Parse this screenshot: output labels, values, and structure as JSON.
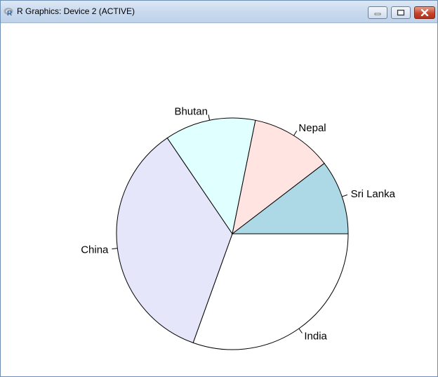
{
  "window": {
    "title": "R Graphics: Device 2 (ACTIVE)",
    "icon": "r-logo-icon",
    "controls": [
      "minimize-icon",
      "maximize-icon",
      "close-icon"
    ]
  },
  "chart_data": {
    "type": "pie",
    "categories": [
      "India",
      "China",
      "Bhutan",
      "Nepal",
      "Sri Lanka"
    ],
    "values": [
      30.5,
      35.0,
      12.7,
      11.4,
      10.4
    ],
    "colors": [
      "#ffffff",
      "#e6e6fa",
      "#e0ffff",
      "#ffe4e1",
      "#add8e6"
    ],
    "start_angle_deg": 0,
    "direction": "clockwise",
    "title": "",
    "legend": "none"
  }
}
